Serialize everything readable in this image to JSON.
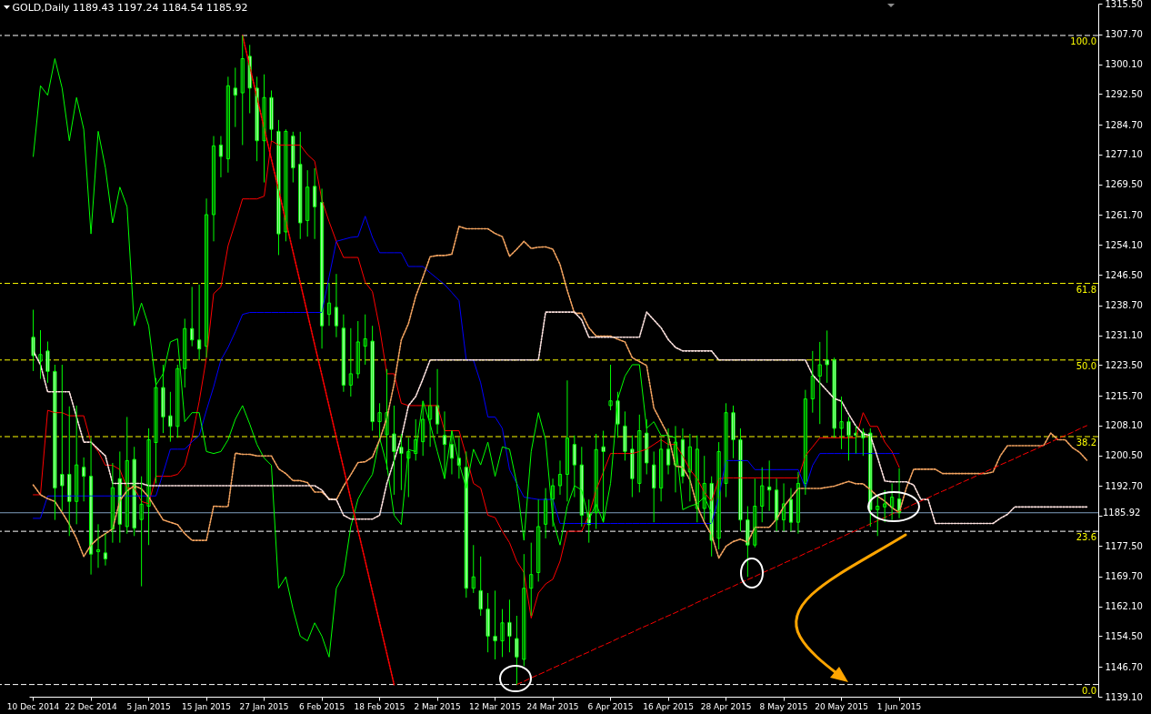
{
  "chart_data": {
    "type": "candlestick",
    "title": "GOLD,Daily  1189.43 1197.24 1184.54 1185.92",
    "categories": [
      "10 Dec 2014",
      null,
      null,
      null,
      null,
      null,
      null,
      null,
      "22 Dec 2014",
      null,
      null,
      null,
      null,
      null,
      null,
      null,
      "5 Jan 2015",
      null,
      null,
      null,
      null,
      null,
      null,
      null,
      "15 Jan 2015",
      null,
      null,
      null,
      null,
      null,
      null,
      null,
      "27 Jan 2015",
      null,
      null,
      null,
      null,
      null,
      null,
      null,
      "6 Feb 2015",
      null,
      null,
      null,
      null,
      null,
      null,
      null,
      "18 Feb 2015",
      null,
      null,
      null,
      null,
      null,
      null,
      null,
      "2 Mar 2015",
      null,
      null,
      null,
      null,
      null,
      null,
      null,
      "12 Mar 2015",
      null,
      null,
      null,
      null,
      null,
      null,
      null,
      "24 Mar 2015",
      null,
      null,
      null,
      null,
      null,
      null,
      null,
      "6 Apr 2015",
      null,
      null,
      null,
      null,
      null,
      null,
      null,
      "16 Apr 2015",
      null,
      null,
      null,
      null,
      null,
      null,
      null,
      "28 Apr 2015",
      null,
      null,
      null,
      null,
      null,
      null,
      null,
      "8 May 2015",
      null,
      null,
      null,
      null,
      null,
      null,
      null,
      "20 May 2015",
      null,
      null,
      null,
      null,
      null,
      null,
      null,
      "1 Jun 2015",
      null,
      null,
      null,
      null,
      null,
      null,
      null,
      null,
      null,
      null,
      null,
      null,
      null,
      null,
      null,
      null,
      null,
      null,
      null,
      null,
      null,
      null,
      null,
      null,
      null,
      null
    ],
    "ohlc": [
      [
        1230.6,
        1237.6,
        1222.0,
        1225.9
      ],
      [
        1224.5,
        1232.4,
        1220.0,
        1226.2
      ],
      [
        1227.1,
        1229.5,
        1219.0,
        1221.9
      ],
      [
        1221.9,
        1223.6,
        1184.1,
        1192.2
      ],
      [
        1195.7,
        1223.6,
        1186.4,
        1192.8
      ],
      [
        1195.7,
        1213.0,
        1180.0,
        1188.8
      ],
      [
        1188.8,
        1213.2,
        1183.0,
        1198.1
      ],
      [
        1197.5,
        1200.0,
        1188.8,
        1195.2
      ],
      [
        1195.2,
        1205.0,
        1170.2,
        1175.4
      ],
      [
        1176.0,
        1183.0,
        1171.9,
        1176.5
      ],
      [
        1175.7,
        1180.6,
        1172.5,
        1174.2
      ],
      [
        1181.8,
        1198.6,
        1178.3,
        1192.3
      ],
      [
        1194.6,
        1201.5,
        1178.3,
        1183.0
      ],
      [
        1182.4,
        1210.3,
        1180.6,
        1199.2
      ],
      [
        1199.5,
        1202.7,
        1180.0,
        1182.0
      ],
      [
        1184.2,
        1195.2,
        1167.2,
        1188.1
      ],
      [
        1187.6,
        1207.4,
        1177.7,
        1204.5
      ],
      [
        1203.8,
        1220.2,
        1193.4,
        1217.8
      ],
      [
        1217.8,
        1223.6,
        1206.2,
        1210.3
      ],
      [
        1210.6,
        1216.7,
        1204.0,
        1207.9
      ],
      [
        1207.9,
        1223.6,
        1205.0,
        1222.6
      ],
      [
        1222.6,
        1235.3,
        1217.8,
        1232.8
      ],
      [
        1232.8,
        1243.4,
        1228.3,
        1229.9
      ],
      [
        1229.9,
        1244.0,
        1224.8,
        1227.6
      ],
      [
        1228.3,
        1265.9,
        1225.4,
        1261.8
      ],
      [
        1261.8,
        1281.8,
        1255.0,
        1279.3
      ],
      [
        1279.5,
        1281.8,
        1271.3,
        1276.6
      ],
      [
        1276.0,
        1296.9,
        1272.5,
        1294.6
      ],
      [
        1294.0,
        1299.2,
        1284.1,
        1292.2
      ],
      [
        1292.8,
        1307.4,
        1279.5,
        1301.5
      ],
      [
        1302.1,
        1305.0,
        1287.6,
        1294.0
      ],
      [
        1294.0,
        1296.9,
        1275.4,
        1280.6
      ],
      [
        1280.6,
        1297.5,
        1270.0,
        1291.6
      ],
      [
        1291.6,
        1293.4,
        1280.6,
        1283.5
      ],
      [
        1283.0,
        1285.9,
        1251.5,
        1256.9
      ],
      [
        1257.4,
        1283.5,
        1255.0,
        1283.0
      ],
      [
        1281.8,
        1282.9,
        1270.0,
        1273.7
      ],
      [
        1274.6,
        1282.9,
        1255.6,
        1259.7
      ],
      [
        1260.3,
        1273.1,
        1256.2,
        1268.8
      ],
      [
        1269.0,
        1273.6,
        1255.6,
        1263.8
      ],
      [
        1264.9,
        1268.4,
        1227.7,
        1233.5
      ],
      [
        1236.4,
        1244.4,
        1233.5,
        1239.3
      ],
      [
        1238.2,
        1246.7,
        1230.6,
        1233.5
      ],
      [
        1232.9,
        1236.4,
        1216.7,
        1218.4
      ],
      [
        1218.4,
        1232.9,
        1215.5,
        1221.3
      ],
      [
        1221.3,
        1234.7,
        1220.1,
        1229.4
      ],
      [
        1228.3,
        1236.4,
        1223.6,
        1230.2
      ],
      [
        1229.6,
        1233.5,
        1206.8,
        1209.1
      ],
      [
        1209.1,
        1213.8,
        1205.0,
        1211.4
      ],
      [
        1205.8,
        1222.5,
        1196.9,
        1211.4
      ],
      [
        1206.0,
        1213.2,
        1190.5,
        1201.5
      ],
      [
        1202.6,
        1206.0,
        1191.7,
        1201.0
      ],
      [
        1199.8,
        1205.0,
        1189.9,
        1201.5
      ],
      [
        1201.0,
        1209.7,
        1199.2,
        1204.5
      ],
      [
        1204.0,
        1214.3,
        1200.4,
        1209.7
      ],
      [
        1209.7,
        1217.8,
        1202.7,
        1213.2
      ],
      [
        1213.2,
        1222.5,
        1206.0,
        1208.5
      ],
      [
        1205.6,
        1211.7,
        1194.6,
        1203.3
      ],
      [
        1203.3,
        1206.8,
        1195.7,
        1199.8
      ],
      [
        1199.8,
        1205.0,
        1194.6,
        1198.0
      ],
      [
        1197.5,
        1201.5,
        1164.3,
        1166.7
      ],
      [
        1166.7,
        1177.7,
        1165.5,
        1169.6
      ],
      [
        1166.1,
        1174.8,
        1159.7,
        1161.4
      ],
      [
        1161.4,
        1165.5,
        1150.4,
        1154.5
      ],
      [
        1154.5,
        1166.1,
        1148.6,
        1153.3
      ],
      [
        1153.3,
        1161.4,
        1149.2,
        1157.9
      ],
      [
        1158.0,
        1163.8,
        1150.4,
        1154.5
      ],
      [
        1153.9,
        1159.7,
        1142.2,
        1149.2
      ],
      [
        1148.6,
        1175.4,
        1146.9,
        1166.7
      ],
      [
        1166.7,
        1178.3,
        1159.7,
        1170.2
      ],
      [
        1170.7,
        1189.3,
        1168.4,
        1182.4
      ],
      [
        1183.0,
        1192.2,
        1179.4,
        1189.4
      ],
      [
        1189.4,
        1194.6,
        1182.4,
        1192.8
      ],
      [
        1192.8,
        1199.2,
        1190.5,
        1195.7
      ],
      [
        1195.7,
        1219.6,
        1188.8,
        1204.9
      ],
      [
        1203.3,
        1205.6,
        1189.9,
        1198.1
      ],
      [
        1198.1,
        1202.7,
        1182.4,
        1185.3
      ],
      [
        1185.8,
        1189.3,
        1178.3,
        1182.9
      ],
      [
        1186.0,
        1206.0,
        1181.8,
        1202.0
      ],
      [
        1202.7,
        1206.8,
        1183.5,
        1201.5
      ],
      [
        1213.2,
        1223.6,
        1212.0,
        1214.4
      ],
      [
        1214.4,
        1216.7,
        1205.0,
        1208.5
      ],
      [
        1208.0,
        1211.7,
        1199.2,
        1201.5
      ],
      [
        1202.1,
        1205.6,
        1189.9,
        1194.6
      ],
      [
        1193.4,
        1210.9,
        1191.1,
        1206.8
      ],
      [
        1206.2,
        1209.7,
        1195.7,
        1198.6
      ],
      [
        1198.1,
        1201.5,
        1183.5,
        1192.2
      ],
      [
        1192.2,
        1205.0,
        1188.8,
        1202.1
      ],
      [
        1202.1,
        1207.4,
        1195.7,
        1198.1
      ],
      [
        1198.1,
        1208.0,
        1191.1,
        1203.9
      ],
      [
        1204.5,
        1207.4,
        1193.4,
        1195.2
      ],
      [
        1196.3,
        1206.0,
        1188.8,
        1202.7
      ],
      [
        1187.0,
        1205.6,
        1183.5,
        1202.1
      ],
      [
        1187.0,
        1200.4,
        1184.1,
        1193.4
      ],
      [
        1193.4,
        1195.2,
        1174.8,
        1178.9
      ],
      [
        1179.4,
        1203.9,
        1176.6,
        1201.5
      ],
      [
        1193.4,
        1213.8,
        1189.9,
        1211.4
      ],
      [
        1211.4,
        1213.2,
        1199.8,
        1204.5
      ],
      [
        1204.5,
        1207.4,
        1181.2,
        1184.1
      ],
      [
        1184.1,
        1187.6,
        1169.6,
        1177.7
      ],
      [
        1177.7,
        1194.6,
        1177.1,
        1187.6
      ],
      [
        1187.6,
        1197.5,
        1183.5,
        1192.8
      ],
      [
        1192.5,
        1199.2,
        1186.4,
        1191.7
      ],
      [
        1191.7,
        1194.6,
        1181.2,
        1184.1
      ],
      [
        1184.1,
        1193.4,
        1181.2,
        1188.2
      ],
      [
        1189.3,
        1192.2,
        1181.2,
        1183.5
      ],
      [
        1183.5,
        1196.3,
        1180.6,
        1193.4
      ],
      [
        1193.4,
        1217.2,
        1190.5,
        1214.9
      ],
      [
        1214.9,
        1227.1,
        1211.4,
        1220.7
      ],
      [
        1220.7,
        1229.4,
        1208.5,
        1223.6
      ],
      [
        1224.8,
        1232.3,
        1219.0,
        1223.6
      ],
      [
        1224.8,
        1225.4,
        1205.0,
        1207.4
      ],
      [
        1207.4,
        1215.5,
        1202.1,
        1209.1
      ],
      [
        1209.1,
        1210.3,
        1199.2,
        1205.6
      ],
      [
        1206.2,
        1208.0,
        1201.0,
        1205.6
      ],
      [
        1206.4,
        1207.4,
        1200.4,
        1205.0
      ],
      [
        1206.2,
        1207.4,
        1182.4,
        1186.7
      ],
      [
        1186.7,
        1190.0,
        1180.0,
        1187.6
      ],
      [
        1187.4,
        1191.7,
        1183.5,
        1188.2
      ],
      [
        1187.4,
        1193.4,
        1184.1,
        1189.9
      ],
      [
        1189.43,
        1197.24,
        1184.54,
        1185.92
      ],
      null,
      null,
      null,
      null,
      null,
      null,
      null,
      null,
      null,
      null,
      null,
      null,
      null,
      null,
      null,
      null,
      null,
      null,
      null,
      null,
      null,
      null,
      null,
      null,
      null,
      null
    ],
    "color": "#00ff00",
    "colors": [
      "#ffffff",
      "#000000",
      "#ffffff",
      "#ffffff",
      "#ffffff",
      "#ffffff",
      "#000000",
      "#ffffff",
      "#ffffff",
      "#000000",
      "#ffffff",
      "#000000",
      "#ffffff",
      "#000000",
      "#ffffff",
      "#000000",
      "#000000",
      "#000000",
      "#ffffff",
      "#ffffff",
      "#000000",
      "#000000",
      "#ffffff",
      "#ffffff",
      "#000000",
      "#000000",
      "#ffffff",
      "#000000",
      "#ffffff",
      "#000000",
      "#ffffff",
      "#ffffff",
      "#000000",
      "#ffffff",
      "#ffffff",
      "#000000",
      "#ffffff",
      "#ffffff",
      "#000000",
      "#ffffff",
      "#ffffff",
      "#000000",
      "#ffffff",
      "#ffffff",
      "#000000",
      "#000000",
      "#000000",
      "#ffffff",
      "#000000",
      "#000000",
      "#ffffff",
      "#ffffff",
      "#000000",
      "#000000",
      "#000000",
      "#000000",
      "#ffffff",
      "#ffffff",
      "#ffffff",
      "#ffffff",
      "#ffffff",
      "#000000",
      "#ffffff",
      "#ffffff",
      "#ffffff",
      "#000000",
      "#ffffff",
      "#ffffff",
      "#000000",
      "#000000",
      "#000000",
      "#000000",
      "#000000",
      "#000000",
      "#000000",
      "#ffffff",
      "#ffffff",
      "#ffffff",
      "#000000",
      "#ffffff",
      "#000000",
      "#ffffff",
      "#ffffff",
      "#ffffff",
      "#000000",
      "#ffffff",
      "#ffffff",
      "#000000",
      "#ffffff",
      "#000000",
      "#ffffff",
      "#000000",
      "#000000",
      "#000000",
      "#ffffff",
      "#000000",
      "#000000",
      "#ffffff",
      "#ffffff",
      "#ffffff",
      "#000000",
      "#000000",
      "#ffffff",
      "#ffffff",
      "#000000",
      "#ffffff",
      "#000000",
      "#000000",
      "#000000",
      "#000000",
      "#ffffff",
      "#ffffff",
      "#000000",
      "#ffffff",
      "#ffffff",
      "#ffffff",
      "#ffffff",
      "#000000",
      "#000000",
      "#000000",
      "#ffffff",
      null,
      null,
      null,
      null,
      null,
      null,
      null,
      null,
      null,
      null,
      null,
      null,
      null,
      null,
      null,
      null,
      null,
      null,
      null,
      null,
      null,
      null,
      null,
      null,
      null,
      null
    ],
    "series": [
      {
        "type": "line",
        "color": "#ff0000",
        "line_style": "solid",
        "values": [
          1190.5,
          1190.5,
          1212.0,
          1211.4,
          1211.4,
          1210.6,
          1210.6,
          1210.6,
          1203.9,
          1201.5,
          1198.0,
          1198.0,
          1196.9,
          1192.2,
          1192.2,
          1188.8,
          1188.2,
          1195.2,
          1195.2,
          1195.2,
          1195.7,
          1198.0,
          1205.0,
          1214.3,
          1225.4,
          1241.7,
          1243.4,
          1253.9,
          1259.7,
          1265.8,
          1265.8,
          1265.8,
          1266.5,
          1280.6,
          1279.5,
          1279.5,
          1279.5,
          1279.5,
          1277.1,
          1275.4,
          1265.5,
          1260.0,
          1255.0,
          1250.9,
          1250.9,
          1250.9,
          1244.6,
          1242.2,
          1232.9,
          1221.3,
          1221.3,
          1213.8,
          1213.2,
          1213.2,
          1213.2,
          1213.2,
          1213.2,
          1206.8,
          1206.8,
          1206.8,
          1200.4,
          1193.4,
          1192.2,
          1185.3,
          1184.7,
          1181.2,
          1178.3,
          1173.6,
          1170.7,
          1159.1,
          1165.5,
          1167.8,
          1169.0,
          1173.6,
          1181.2,
          1181.2,
          1181.2,
          1185.3,
          1191.7,
          1196.3,
          1201.0,
          1201.0,
          1201.0,
          1201.0,
          1201.5,
          1202.1,
          1203.3,
          1204.5,
          1203.3,
          1203.3,
          1200.4,
          1196.9,
          1194.6,
          1191.1,
          1188.8,
          1194.6,
          1194.8,
          1194.8,
          1194.8,
          1194.8,
          1194.8,
          1194.8,
          1194.8,
          1194.8,
          1194.8,
          1194.8,
          1194.8,
          1200.4,
          1202.7,
          1205.0,
          1205.0,
          1205.0,
          1205.0,
          1205.0,
          1205.0,
          1211.4,
          1207.9,
          1207.9,
          1203.9,
          1201.5,
          1197.5,
          null,
          null,
          null,
          null,
          null,
          null,
          null,
          null,
          null,
          null,
          null,
          null,
          null,
          null,
          null,
          null,
          null,
          null,
          null,
          null,
          null,
          null,
          null,
          null,
          null,
          null
        ]
      },
      {
        "type": "line",
        "color": "#0000ff",
        "line_style": "solid",
        "values": [
          1184.5,
          1184.5,
          1190.2,
          1190.2,
          1190.2,
          1190.2,
          1190.2,
          1190.2,
          1190.2,
          1190.2,
          1190.2,
          1190.2,
          1190.2,
          1190.2,
          1190.2,
          1190.2,
          1190.2,
          1190.2,
          1196.0,
          1202.1,
          1202.1,
          1202.1,
          1204.0,
          1205.6,
          1212.0,
          1218.0,
          1224.8,
          1228.0,
          1232.0,
          1236.4,
          1236.9,
          1236.9,
          1236.9,
          1236.9,
          1236.9,
          1236.9,
          1236.9,
          1236.9,
          1236.9,
          1236.9,
          1236.9,
          1246.0,
          1255.0,
          1255.5,
          1256.0,
          1256.2,
          1261.4,
          1256.0,
          1252.1,
          1252.1,
          1252.1,
          1252.1,
          1248.6,
          1248.6,
          1248.6,
          1247.0,
          1245.5,
          1244.0,
          1242.0,
          1239.9,
          1224.8,
          1224.8,
          1219.0,
          1210.3,
          1210.3,
          1207.4,
          1196.9,
          1193.4,
          1189.9,
          1189.6,
          1189.3,
          1189.3,
          1189.3,
          1183.2,
          1183.2,
          1183.2,
          1183.2,
          1183.2,
          1183.2,
          1183.2,
          1183.2,
          1183.2,
          1183.2,
          1183.2,
          1183.2,
          1183.2,
          1183.2,
          1183.2,
          1183.2,
          1183.2,
          1183.2,
          1183.2,
          1183.2,
          1183.2,
          1183.2,
          1190.0,
          1199.2,
          1199.2,
          1199.2,
          1199.2,
          1196.9,
          1196.9,
          1196.9,
          1196.9,
          1196.9,
          1196.9,
          1196.9,
          1192.2,
          1198.0,
          1201.0,
          1201.0,
          1201.0,
          1201.0,
          1201.0,
          1201.0,
          1201.0,
          1201.0,
          1201.0,
          1201.0,
          1201.0,
          1201.0,
          null,
          null,
          null,
          null,
          null,
          null,
          null,
          null,
          null,
          null,
          null,
          null,
          null,
          null,
          null,
          null,
          null,
          null,
          null,
          null,
          null,
          null,
          null,
          null,
          null,
          null
        ]
      },
      {
        "type": "line",
        "color": "#00ff00",
        "line_style": "solid",
        "values": [
          1276.6,
          1294.6,
          1292.2,
          1301.5,
          1294.0,
          1280.6,
          1291.6,
          1283.5,
          1256.9,
          1283.0,
          1273.7,
          1259.7,
          1268.8,
          1263.8,
          1233.5,
          1239.3,
          1233.5,
          1218.4,
          1221.3,
          1229.4,
          1230.2,
          1209.1,
          1211.4,
          1211.4,
          1201.5,
          1201.0,
          1201.5,
          1204.5,
          1209.7,
          1213.2,
          1208.5,
          1203.3,
          1199.8,
          1198.0,
          1166.7,
          1169.6,
          1161.4,
          1154.5,
          1153.3,
          1157.9,
          1154.5,
          1149.2,
          1166.7,
          1170.2,
          1182.4,
          1189.4,
          1192.8,
          1195.7,
          1204.9,
          1198.1,
          1185.3,
          1182.9,
          1202.0,
          1201.5,
          1214.4,
          1208.5,
          1201.5,
          1194.6,
          1206.8,
          1198.6,
          1192.2,
          1202.1,
          1198.1,
          1203.9,
          1195.2,
          1202.7,
          1202.1,
          1193.4,
          1178.9,
          1201.5,
          1211.4,
          1204.5,
          1184.1,
          1177.7,
          1187.6,
          1192.8,
          1191.7,
          1184.1,
          1188.2,
          1183.5,
          1193.4,
          1214.9,
          1220.7,
          1223.6,
          1223.6,
          1207.4,
          1209.1,
          1205.6,
          1205.6,
          1205.0,
          1186.7,
          1187.6,
          1188.2,
          1189.9,
          1185.92,
          null,
          null,
          null,
          null,
          null,
          null,
          null,
          null,
          null,
          null,
          null,
          null,
          null,
          null,
          null,
          null,
          null,
          null,
          null,
          null,
          null,
          null,
          null,
          null,
          null,
          null,
          null,
          null,
          null,
          null,
          null,
          null,
          null,
          null,
          null,
          null,
          null,
          null,
          null,
          null,
          null,
          null,
          null,
          null,
          null,
          null,
          null,
          null,
          null,
          null,
          null,
          null
        ]
      },
      {
        "type": "line",
        "color": "#f4a460",
        "line_style": "dotted",
        "values": [
          1193.0,
          1190.5,
          1189.5,
          1188.8,
          1186.0,
          1183.0,
          1179.4,
          1174.8,
          1177.7,
          1179.4,
          1180.6,
          1181.8,
          1189.0,
          1191.5,
          1192.8,
          1192.0,
          1189.9,
          1187.0,
          1184.1,
          1183.5,
          1182.9,
          1180.6,
          1178.9,
          1178.9,
          1178.9,
          1187.6,
          1187.5,
          1187.5,
          1201.1,
          1200.8,
          1200.8,
          1200.4,
          1200.4,
          1200.4,
          1197.1,
          1195.9,
          1194.1,
          1194.1,
          1193.6,
          1191.2,
          1191.2,
          1189.5,
          1189.2,
          1192.7,
          1195.6,
          1198.7,
          1198.9,
          1200.1,
          1204.5,
          1210.0,
          1218.7,
          1229.9,
          1234.1,
          1241.0,
          1245.9,
          1251.1,
          1251.4,
          1251.4,
          1251.7,
          1258.8,
          1258.2,
          1258.2,
          1258.2,
          1258.2,
          1257.0,
          1256.2,
          1251.2,
          1253.0,
          1255.0,
          1253.2,
          1253.5,
          1253.6,
          1253.0,
          1249.1,
          1242.5,
          1236.7,
          1236.7,
          1233.0,
          1230.9,
          1230.9,
          1230.9,
          1230.1,
          1229.4,
          1225.4,
          1224.4,
          1223.4,
          1212.6,
          1209.1,
          1205.6,
          1197.8,
          1197.5,
          1194.3,
          1187.6,
          1183.5,
          1180.3,
          1174.4,
          1177.4,
          1178.6,
          1179.2,
          1178.4,
          1182.2,
          1182.2,
          1182.2,
          1184.3,
          1187.5,
          1189.8,
          1192.1,
          1192.1,
          1192.1,
          1192.1,
          1192.4,
          1192.7,
          1193.3,
          1193.9,
          1193.3,
          1193.3,
          1191.8,
          1190.1,
          1188.9,
          1187.2,
          1186.0,
          1192.3,
          1197.0,
          1197.0,
          1197.0,
          1197.0,
          1195.9,
          1195.9,
          1195.9,
          1195.9,
          1195.9,
          1195.9,
          1195.9,
          1196.3,
          1200.4,
          1203.0,
          1203.0,
          1203.0,
          1203.0,
          1203.0,
          1203.0,
          1206.2,
          1204.5,
          1204.5,
          1202.5,
          1201.3,
          1199.3
        ]
      },
      {
        "type": "line",
        "color": "#ffe4e1",
        "line_style": "dotted",
        "values": [
          1227.1,
          1223.6,
          1216.7,
          1216.7,
          1216.7,
          1216.7,
          1210.3,
          1203.9,
          1203.9,
          1202.1,
          1200.4,
          1193.4,
          1193.4,
          1193.4,
          1193.4,
          1193.4,
          1192.8,
          1192.8,
          1192.8,
          1192.8,
          1192.8,
          1192.8,
          1192.8,
          1192.8,
          1192.8,
          1192.8,
          1192.8,
          1192.8,
          1192.8,
          1192.8,
          1192.8,
          1192.8,
          1192.8,
          1192.8,
          1192.8,
          1192.8,
          1192.8,
          1192.8,
          1192.8,
          1192.8,
          1191.7,
          1189.3,
          1189.3,
          1185.3,
          1184.3,
          1184.3,
          1184.3,
          1184.3,
          1185.3,
          1193.4,
          1199.2,
          1205.0,
          1213.2,
          1215.5,
          1220.0,
          1224.8,
          1224.8,
          1224.8,
          1224.8,
          1224.8,
          1224.8,
          1224.8,
          1224.8,
          1224.8,
          1224.8,
          1224.8,
          1224.8,
          1224.8,
          1224.8,
          1224.8,
          1224.8,
          1237.0,
          1237.0,
          1237.0,
          1237.0,
          1237.0,
          1235.0,
          1230.6,
          1230.6,
          1230.6,
          1230.6,
          1230.6,
          1230.6,
          1230.6,
          1230.6,
          1237.0,
          1235.0,
          1233.0,
          1230.0,
          1228.0,
          1227.1,
          1227.1,
          1227.1,
          1227.1,
          1227.1,
          1224.8,
          1224.8,
          1224.8,
          1224.8,
          1224.8,
          1224.8,
          1224.8,
          1224.8,
          1224.8,
          1224.8,
          1224.8,
          1224.8,
          1224.8,
          1221.0,
          1219.0,
          1217.0,
          1215.0,
          1214.3,
          1211.0,
          1208.0,
          1206.0,
          1205.6,
          1200.0,
          1194.0,
          1193.8,
          1193.8,
          1193.8,
          1193.0,
          1189.3,
          1189.3,
          1183.2,
          1183.2,
          1183.2,
          1183.2,
          1183.2,
          1183.2,
          1183.2,
          1183.2,
          1183.2,
          1184.5,
          1185.5,
          1187.4,
          1187.4,
          1187.4,
          1187.4,
          1187.4,
          1187.4,
          1187.4,
          1187.4,
          1187.4,
          1187.4,
          1187.4
        ]
      },
      {
        "type": "line",
        "color": "#ff0000",
        "line_style": "dashed",
        "values": [
          null,
          null,
          null,
          null,
          null,
          null,
          null,
          null,
          null,
          null,
          null,
          null,
          null,
          null,
          null,
          null,
          null,
          null,
          null,
          null,
          null,
          null,
          null,
          null,
          null,
          null,
          null,
          null,
          null,
          null,
          null,
          null,
          null,
          null,
          null,
          null,
          null,
          null,
          null,
          null,
          null,
          null,
          null,
          null,
          null,
          null,
          null,
          null,
          null,
          null,
          null,
          null,
          null,
          null,
          null,
          null,
          null,
          null,
          null,
          null,
          null,
          null,
          null,
          null,
          null,
          null,
          null,
          1142.2,
          1143.0,
          1143.9,
          1144.7,
          1145.5,
          1146.4,
          1147.2,
          1148.0,
          1148.9,
          1149.7,
          1150.5,
          1151.4,
          1152.2,
          1153.0,
          1153.9,
          1154.7,
          1155.5,
          1156.4,
          1157.2,
          1158.0,
          1158.9,
          1159.7,
          1160.5,
          1161.4,
          1162.2,
          1163.1,
          1163.9,
          1164.7,
          1165.6,
          1166.4,
          1167.2,
          1168.1,
          1168.9,
          1169.7,
          1170.6,
          1171.4,
          1172.2,
          1173.1,
          1173.9,
          1174.7,
          1175.6,
          1176.4,
          1177.2,
          1178.1,
          1178.9,
          1179.7,
          1180.6,
          1181.4,
          1182.2,
          1183.1,
          1183.9,
          1184.7,
          1185.6,
          1186.4,
          1187.2,
          1188.1,
          1188.9,
          1189.7,
          1190.6,
          1191.4,
          1192.2,
          1193.1,
          1193.9,
          1194.7,
          1195.6,
          1196.4,
          1197.2,
          1198.1,
          1198.9,
          1199.7,
          1200.6,
          1201.4,
          1202.2,
          1203.1,
          1203.9,
          1204.8,
          1205.6,
          1206.4,
          1207.3,
          1208.1
        ]
      },
      {
        "type": "line",
        "color": "#ff0000",
        "line_style": "dotted",
        "values": [
          null,
          null,
          null,
          null,
          null,
          null,
          null,
          null,
          null,
          null,
          null,
          null,
          null,
          null,
          null,
          null,
          null,
          null,
          null,
          null,
          null,
          null,
          null,
          null,
          null,
          null,
          null,
          null,
          null,
          1307.4,
          1299.5,
          1291.7,
          1283.8,
          1275.9,
          1268.1,
          1260.2,
          1252.3,
          1244.5,
          1236.6,
          1228.7,
          1220.9,
          1213.0,
          1205.1,
          1197.3,
          1189.4,
          1181.5,
          1173.7,
          1165.8,
          1157.9,
          1150.1,
          1142.2,
          null,
          null,
          null,
          null,
          null,
          null,
          null,
          null,
          null,
          null,
          null,
          null,
          null,
          null,
          null,
          null,
          null,
          null,
          null,
          null,
          null,
          null,
          null,
          null,
          null,
          null,
          null,
          null,
          null,
          null,
          null,
          null,
          null,
          null,
          null,
          null,
          null,
          null,
          null,
          null,
          null,
          null,
          null,
          null,
          null,
          null,
          null,
          null,
          null,
          null,
          null,
          null,
          null,
          null,
          null,
          null,
          null,
          null,
          null,
          null,
          null,
          null,
          null,
          null,
          null,
          null,
          null,
          null,
          null,
          null,
          null,
          null,
          null,
          null,
          null,
          null,
          null,
          null,
          null,
          null,
          null,
          null,
          null,
          null,
          null,
          null,
          null,
          null,
          null,
          null,
          null,
          null,
          null,
          null,
          null,
          null
        ]
      }
    ],
    "ylim": [
      1139.1,
      1315.5
    ],
    "yticks": [
      {
        "value": 1139.1,
        "label": "1139.10"
      },
      {
        "value": 1146.7,
        "label": "1146.70"
      },
      {
        "value": 1154.5,
        "label": "1154.50"
      },
      {
        "value": 1162.1,
        "label": "1162.10"
      },
      {
        "value": 1169.7,
        "label": "1169.70"
      },
      {
        "value": 1177.5,
        "label": "1177.50"
      },
      {
        "value": 1185.1,
        "label": null
      },
      {
        "value": 1192.7,
        "label": "1192.70"
      },
      {
        "value": 1200.5,
        "label": "1200.50"
      },
      {
        "value": 1208.1,
        "label": "1208.10"
      },
      {
        "value": 1215.7,
        "label": "1215.70"
      },
      {
        "value": 1223.5,
        "label": "1223.50"
      },
      {
        "value": 1231.1,
        "label": "1231.10"
      },
      {
        "value": 1238.7,
        "label": "1238.70"
      },
      {
        "value": 1246.5,
        "label": "1246.50"
      },
      {
        "value": 1254.1,
        "label": "1254.10"
      },
      {
        "value": 1261.7,
        "label": "1261.70"
      },
      {
        "value": 1269.5,
        "label": "1269.50"
      },
      {
        "value": 1277.1,
        "label": "1277.10"
      },
      {
        "value": 1284.7,
        "label": "1284.70"
      },
      {
        "value": 1292.5,
        "label": "1292.50"
      },
      {
        "value": 1300.1,
        "label": "1300.10"
      },
      {
        "value": 1307.7,
        "label": "1307.70"
      },
      {
        "value": 1315.5,
        "label": "1315.50"
      }
    ],
    "ref_lines": [
      {
        "axis": "y",
        "value": 1307.4,
        "color": "#ffffff",
        "line_style": "dashed"
      },
      {
        "axis": "y",
        "value": 1244.3,
        "color": "#ffff00",
        "line_style": "dashed"
      },
      {
        "axis": "y",
        "value": 1224.8,
        "color": "#ffff00",
        "line_style": "dashed"
      },
      {
        "axis": "y",
        "value": 1205.3,
        "color": "#ffff00",
        "line_style": "dashed"
      },
      {
        "axis": "y",
        "value": 1181.2,
        "color": "#ffffff",
        "line_style": "dashed"
      },
      {
        "axis": "y",
        "value": 1142.2,
        "color": "#ffffff",
        "line_style": "dashed"
      },
      {
        "axis": "y",
        "value": 1185.92,
        "label": "1185.92",
        "color": "#7f9fbf",
        "line_style": "solid"
      }
    ],
    "annotations": [
      {
        "text": "100.0",
        "y": 1307.4
      },
      {
        "text": "61.8",
        "y": 1244.3
      },
      {
        "text": "50.0",
        "y": 1224.8
      },
      {
        "text": "38.2",
        "y": 1205.3
      },
      {
        "text": "23.6",
        "y": 1181.2
      },
      {
        "text": "0.0",
        "y": 1142.2
      }
    ]
  }
}
